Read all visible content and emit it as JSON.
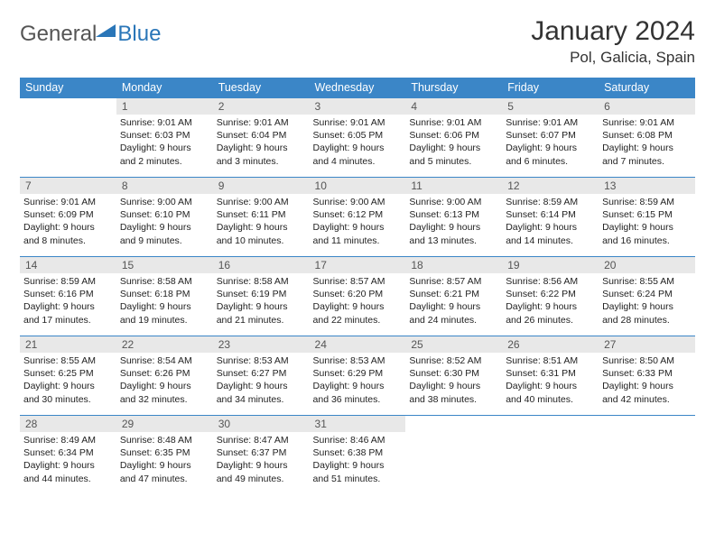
{
  "brand": {
    "part1": "General",
    "part2": "Blue"
  },
  "title": {
    "month": "January 2024",
    "location": "Pol, Galicia, Spain"
  },
  "dayNames": [
    "Sunday",
    "Monday",
    "Tuesday",
    "Wednesday",
    "Thursday",
    "Friday",
    "Saturday"
  ],
  "colors": {
    "header_bg": "#3b86c7",
    "header_fg": "#ffffff",
    "daynum_bg": "#e8e8e8",
    "daynum_fg": "#555555",
    "text": "#222222",
    "border": "#3b86c7",
    "brand_gray": "#555555",
    "brand_blue": "#2a76b8"
  },
  "startCol": 1,
  "days": [
    {
      "n": "1",
      "sr": "9:01 AM",
      "ss": "6:03 PM",
      "dl": "9 hours and 2 minutes."
    },
    {
      "n": "2",
      "sr": "9:01 AM",
      "ss": "6:04 PM",
      "dl": "9 hours and 3 minutes."
    },
    {
      "n": "3",
      "sr": "9:01 AM",
      "ss": "6:05 PM",
      "dl": "9 hours and 4 minutes."
    },
    {
      "n": "4",
      "sr": "9:01 AM",
      "ss": "6:06 PM",
      "dl": "9 hours and 5 minutes."
    },
    {
      "n": "5",
      "sr": "9:01 AM",
      "ss": "6:07 PM",
      "dl": "9 hours and 6 minutes."
    },
    {
      "n": "6",
      "sr": "9:01 AM",
      "ss": "6:08 PM",
      "dl": "9 hours and 7 minutes."
    },
    {
      "n": "7",
      "sr": "9:01 AM",
      "ss": "6:09 PM",
      "dl": "9 hours and 8 minutes."
    },
    {
      "n": "8",
      "sr": "9:00 AM",
      "ss": "6:10 PM",
      "dl": "9 hours and 9 minutes."
    },
    {
      "n": "9",
      "sr": "9:00 AM",
      "ss": "6:11 PM",
      "dl": "9 hours and 10 minutes."
    },
    {
      "n": "10",
      "sr": "9:00 AM",
      "ss": "6:12 PM",
      "dl": "9 hours and 11 minutes."
    },
    {
      "n": "11",
      "sr": "9:00 AM",
      "ss": "6:13 PM",
      "dl": "9 hours and 13 minutes."
    },
    {
      "n": "12",
      "sr": "8:59 AM",
      "ss": "6:14 PM",
      "dl": "9 hours and 14 minutes."
    },
    {
      "n": "13",
      "sr": "8:59 AM",
      "ss": "6:15 PM",
      "dl": "9 hours and 16 minutes."
    },
    {
      "n": "14",
      "sr": "8:59 AM",
      "ss": "6:16 PM",
      "dl": "9 hours and 17 minutes."
    },
    {
      "n": "15",
      "sr": "8:58 AM",
      "ss": "6:18 PM",
      "dl": "9 hours and 19 minutes."
    },
    {
      "n": "16",
      "sr": "8:58 AM",
      "ss": "6:19 PM",
      "dl": "9 hours and 21 minutes."
    },
    {
      "n": "17",
      "sr": "8:57 AM",
      "ss": "6:20 PM",
      "dl": "9 hours and 22 minutes."
    },
    {
      "n": "18",
      "sr": "8:57 AM",
      "ss": "6:21 PM",
      "dl": "9 hours and 24 minutes."
    },
    {
      "n": "19",
      "sr": "8:56 AM",
      "ss": "6:22 PM",
      "dl": "9 hours and 26 minutes."
    },
    {
      "n": "20",
      "sr": "8:55 AM",
      "ss": "6:24 PM",
      "dl": "9 hours and 28 minutes."
    },
    {
      "n": "21",
      "sr": "8:55 AM",
      "ss": "6:25 PM",
      "dl": "9 hours and 30 minutes."
    },
    {
      "n": "22",
      "sr": "8:54 AM",
      "ss": "6:26 PM",
      "dl": "9 hours and 32 minutes."
    },
    {
      "n": "23",
      "sr": "8:53 AM",
      "ss": "6:27 PM",
      "dl": "9 hours and 34 minutes."
    },
    {
      "n": "24",
      "sr": "8:53 AM",
      "ss": "6:29 PM",
      "dl": "9 hours and 36 minutes."
    },
    {
      "n": "25",
      "sr": "8:52 AM",
      "ss": "6:30 PM",
      "dl": "9 hours and 38 minutes."
    },
    {
      "n": "26",
      "sr": "8:51 AM",
      "ss": "6:31 PM",
      "dl": "9 hours and 40 minutes."
    },
    {
      "n": "27",
      "sr": "8:50 AM",
      "ss": "6:33 PM",
      "dl": "9 hours and 42 minutes."
    },
    {
      "n": "28",
      "sr": "8:49 AM",
      "ss": "6:34 PM",
      "dl": "9 hours and 44 minutes."
    },
    {
      "n": "29",
      "sr": "8:48 AM",
      "ss": "6:35 PM",
      "dl": "9 hours and 47 minutes."
    },
    {
      "n": "30",
      "sr": "8:47 AM",
      "ss": "6:37 PM",
      "dl": "9 hours and 49 minutes."
    },
    {
      "n": "31",
      "sr": "8:46 AM",
      "ss": "6:38 PM",
      "dl": "9 hours and 51 minutes."
    }
  ],
  "labels": {
    "sunrise": "Sunrise:",
    "sunset": "Sunset:",
    "daylight": "Daylight:"
  }
}
